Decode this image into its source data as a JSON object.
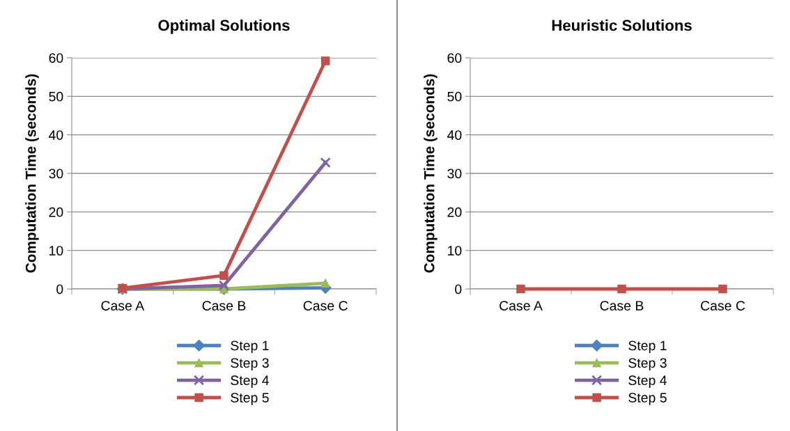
{
  "chart_data": [
    {
      "type": "line",
      "title": "Optimal Solutions",
      "ylabel": "Computation Time (seconds)",
      "categories": [
        "Case A",
        "Case B",
        "Case C"
      ],
      "ylim": [
        0,
        60
      ],
      "yticks": [
        0,
        10,
        20,
        30,
        40,
        50,
        60
      ],
      "grid": "y",
      "legend": "bottom",
      "series": [
        {
          "name": "Step 1",
          "color": "#4f81bd",
          "marker": "diamond",
          "values": [
            0,
            0,
            0.3
          ]
        },
        {
          "name": "Step 3",
          "color": "#9bbb59",
          "marker": "triangle",
          "values": [
            0,
            0,
            1.5
          ]
        },
        {
          "name": "Step 4",
          "color": "#8064a2",
          "marker": "cross",
          "values": [
            0,
            0.9,
            32.8
          ]
        },
        {
          "name": "Step 5",
          "color": "#c0504d",
          "marker": "square",
          "values": [
            0.2,
            3.5,
            59.2
          ]
        }
      ]
    },
    {
      "type": "line",
      "title": "Heuristic Solutions",
      "ylabel": "Computation Time (seconds)",
      "categories": [
        "Case A",
        "Case B",
        "Case C"
      ],
      "ylim": [
        0,
        60
      ],
      "yticks": [
        0,
        10,
        20,
        30,
        40,
        50,
        60
      ],
      "grid": "y",
      "legend": "bottom",
      "series": [
        {
          "name": "Step 1",
          "color": "#4f81bd",
          "marker": "diamond",
          "values": [
            null,
            null,
            null
          ]
        },
        {
          "name": "Step 3",
          "color": "#9bbb59",
          "marker": "triangle",
          "values": [
            null,
            null,
            null
          ]
        },
        {
          "name": "Step 4",
          "color": "#8064a2",
          "marker": "cross",
          "values": [
            null,
            null,
            null
          ]
        },
        {
          "name": "Step 5",
          "color": "#c0504d",
          "marker": "square",
          "values": [
            0,
            0,
            0
          ]
        }
      ]
    }
  ]
}
